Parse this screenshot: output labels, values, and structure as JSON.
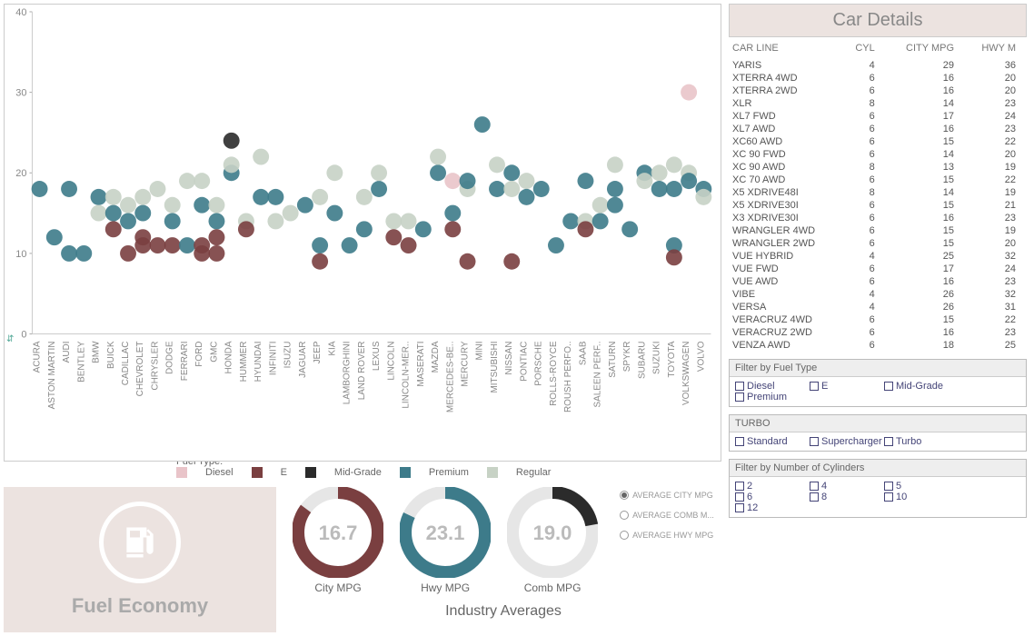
{
  "scatter": {
    "type": "scatter",
    "ylim": [
      0,
      40
    ],
    "yticks": [
      0,
      10,
      20,
      30,
      40
    ],
    "background_color": "#ffffff",
    "border_color": "#cccccc",
    "point_radius": 9,
    "fuel_colors": {
      "Diesel": "#e9c4c9",
      "E": "#7a3f40",
      "Mid-Grade": "#2b2b2b",
      "Premium": "#3d7b8a",
      "Regular": "#c7d2c5"
    },
    "legend_title": "Fuel Type:",
    "fuel_types": [
      "Diesel",
      "E",
      "Mid-Grade",
      "Premium",
      "Regular"
    ],
    "makes": [
      "ACURA",
      "ASTON MARTIN",
      "AUDI",
      "BENTLEY",
      "BMW",
      "BUICK",
      "CADILLAC",
      "CHEVROLET",
      "CHRYSLER",
      "DODGE",
      "FERRARI",
      "FORD",
      "GMC",
      "HONDA",
      "HUMMER",
      "HYUNDAI",
      "INFINITI",
      "ISUZU",
      "JAGUAR",
      "JEEP",
      "KIA",
      "LAMBORGHINI",
      "LAND ROVER",
      "LEXUS",
      "LINCOLN",
      "LINCOLN-MER..",
      "MASERATI",
      "MAZDA",
      "MERCEDES-BE..",
      "MERCURY",
      "MINI",
      "MITSUBISHI",
      "NISSAN",
      "PONTIAC",
      "PORSCHE",
      "ROLLS-ROYCE",
      "ROUSH PERFO..",
      "SAAB",
      "SALEEN PERF..",
      "SATURN",
      "SPYKR",
      "SUBARU",
      "SUZUKI",
      "TOYOTA",
      "VOLKSWAGEN",
      "VOLVO"
    ],
    "points": [
      {
        "m": 0,
        "y": 18,
        "f": "Premium"
      },
      {
        "m": 1,
        "y": 12,
        "f": "Premium"
      },
      {
        "m": 2,
        "y": 18,
        "f": "Premium"
      },
      {
        "m": 2,
        "y": 10,
        "f": "Premium"
      },
      {
        "m": 3,
        "y": 10,
        "f": "Premium"
      },
      {
        "m": 4,
        "y": 17,
        "f": "Premium"
      },
      {
        "m": 4,
        "y": 15,
        "f": "Regular"
      },
      {
        "m": 5,
        "y": 17,
        "f": "Regular"
      },
      {
        "m": 5,
        "y": 15,
        "f": "Premium"
      },
      {
        "m": 5,
        "y": 13,
        "f": "E"
      },
      {
        "m": 6,
        "y": 16,
        "f": "Regular"
      },
      {
        "m": 6,
        "y": 14,
        "f": "Premium"
      },
      {
        "m": 6,
        "y": 10,
        "f": "E"
      },
      {
        "m": 7,
        "y": 17,
        "f": "Regular"
      },
      {
        "m": 7,
        "y": 15,
        "f": "Premium"
      },
      {
        "m": 7,
        "y": 12,
        "f": "E"
      },
      {
        "m": 7,
        "y": 11,
        "f": "E"
      },
      {
        "m": 8,
        "y": 18,
        "f": "Regular"
      },
      {
        "m": 8,
        "y": 11,
        "f": "E"
      },
      {
        "m": 9,
        "y": 16,
        "f": "Regular"
      },
      {
        "m": 9,
        "y": 14,
        "f": "Premium"
      },
      {
        "m": 9,
        "y": 11,
        "f": "E"
      },
      {
        "m": 10,
        "y": 11,
        "f": "Premium"
      },
      {
        "m": 10,
        "y": 19,
        "f": "Regular"
      },
      {
        "m": 11,
        "y": 19,
        "f": "Regular"
      },
      {
        "m": 11,
        "y": 16,
        "f": "Premium"
      },
      {
        "m": 11,
        "y": 11,
        "f": "E"
      },
      {
        "m": 11,
        "y": 10,
        "f": "E"
      },
      {
        "m": 12,
        "y": 16,
        "f": "Regular"
      },
      {
        "m": 12,
        "y": 14,
        "f": "Premium"
      },
      {
        "m": 12,
        "y": 12,
        "f": "E"
      },
      {
        "m": 12,
        "y": 10,
        "f": "E"
      },
      {
        "m": 13,
        "y": 24,
        "f": "Mid-Grade"
      },
      {
        "m": 13,
        "y": 20,
        "f": "Premium"
      },
      {
        "m": 13,
        "y": 21,
        "f": "Regular"
      },
      {
        "m": 14,
        "y": 14,
        "f": "Regular"
      },
      {
        "m": 14,
        "y": 13,
        "f": "E"
      },
      {
        "m": 15,
        "y": 22,
        "f": "Regular"
      },
      {
        "m": 15,
        "y": 17,
        "f": "Premium"
      },
      {
        "m": 16,
        "y": 17,
        "f": "Premium"
      },
      {
        "m": 16,
        "y": 14,
        "f": "Regular"
      },
      {
        "m": 17,
        "y": 15,
        "f": "Regular"
      },
      {
        "m": 18,
        "y": 16,
        "f": "Premium"
      },
      {
        "m": 19,
        "y": 17,
        "f": "Regular"
      },
      {
        "m": 19,
        "y": 11,
        "f": "Premium"
      },
      {
        "m": 19,
        "y": 9,
        "f": "E"
      },
      {
        "m": 20,
        "y": 20,
        "f": "Regular"
      },
      {
        "m": 20,
        "y": 15,
        "f": "Premium"
      },
      {
        "m": 21,
        "y": 11,
        "f": "Premium"
      },
      {
        "m": 22,
        "y": 13,
        "f": "Premium"
      },
      {
        "m": 22,
        "y": 17,
        "f": "Regular"
      },
      {
        "m": 23,
        "y": 18,
        "f": "Premium"
      },
      {
        "m": 23,
        "y": 20,
        "f": "Regular"
      },
      {
        "m": 24,
        "y": 14,
        "f": "Regular"
      },
      {
        "m": 24,
        "y": 12,
        "f": "E"
      },
      {
        "m": 25,
        "y": 11,
        "f": "E"
      },
      {
        "m": 25,
        "y": 14,
        "f": "Regular"
      },
      {
        "m": 26,
        "y": 13,
        "f": "Premium"
      },
      {
        "m": 27,
        "y": 20,
        "f": "Premium"
      },
      {
        "m": 27,
        "y": 22,
        "f": "Regular"
      },
      {
        "m": 28,
        "y": 19,
        "f": "Diesel"
      },
      {
        "m": 28,
        "y": 15,
        "f": "Premium"
      },
      {
        "m": 28,
        "y": 13,
        "f": "E"
      },
      {
        "m": 29,
        "y": 18,
        "f": "Regular"
      },
      {
        "m": 29,
        "y": 19,
        "f": "Premium"
      },
      {
        "m": 29,
        "y": 9,
        "f": "E"
      },
      {
        "m": 30,
        "y": 26,
        "f": "Premium"
      },
      {
        "m": 31,
        "y": 21,
        "f": "Regular"
      },
      {
        "m": 31,
        "y": 18,
        "f": "Premium"
      },
      {
        "m": 32,
        "y": 20,
        "f": "Premium"
      },
      {
        "m": 32,
        "y": 18,
        "f": "Regular"
      },
      {
        "m": 32,
        "y": 9,
        "f": "E"
      },
      {
        "m": 33,
        "y": 19,
        "f": "Regular"
      },
      {
        "m": 33,
        "y": 17,
        "f": "Premium"
      },
      {
        "m": 34,
        "y": 18,
        "f": "Premium"
      },
      {
        "m": 35,
        "y": 11,
        "f": "Premium"
      },
      {
        "m": 36,
        "y": 14,
        "f": "Premium"
      },
      {
        "m": 37,
        "y": 19,
        "f": "Premium"
      },
      {
        "m": 37,
        "y": 14,
        "f": "Regular"
      },
      {
        "m": 37,
        "y": 13,
        "f": "E"
      },
      {
        "m": 38,
        "y": 14,
        "f": "Premium"
      },
      {
        "m": 38,
        "y": 16,
        "f": "Regular"
      },
      {
        "m": 39,
        "y": 21,
        "f": "Regular"
      },
      {
        "m": 39,
        "y": 18,
        "f": "Premium"
      },
      {
        "m": 39,
        "y": 16,
        "f": "Premium"
      },
      {
        "m": 40,
        "y": 13,
        "f": "Premium"
      },
      {
        "m": 41,
        "y": 20,
        "f": "Premium"
      },
      {
        "m": 41,
        "y": 19,
        "f": "Regular"
      },
      {
        "m": 42,
        "y": 20,
        "f": "Regular"
      },
      {
        "m": 42,
        "y": 18,
        "f": "Premium"
      },
      {
        "m": 43,
        "y": 21,
        "f": "Regular"
      },
      {
        "m": 43,
        "y": 18,
        "f": "Premium"
      },
      {
        "m": 43,
        "y": 11,
        "f": "Premium"
      },
      {
        "m": 43,
        "y": 9.5,
        "f": "E"
      },
      {
        "m": 44,
        "y": 30,
        "f": "Diesel"
      },
      {
        "m": 44,
        "y": 20,
        "f": "Regular"
      },
      {
        "m": 44,
        "y": 19,
        "f": "Premium"
      },
      {
        "m": 45,
        "y": 18,
        "f": "Premium"
      },
      {
        "m": 45,
        "y": 17,
        "f": "Regular"
      }
    ]
  },
  "details": {
    "title": "Car Details",
    "columns": [
      "CAR LINE",
      "CYL",
      "CITY MPG",
      "HWY M"
    ],
    "rows": [
      [
        "YARIS",
        4,
        29,
        36
      ],
      [
        "XTERRA 4WD",
        6,
        16,
        20
      ],
      [
        "XTERRA 2WD",
        6,
        16,
        20
      ],
      [
        "XLR",
        8,
        14,
        23
      ],
      [
        "XL7 FWD",
        6,
        17,
        24
      ],
      [
        "XL7 AWD",
        6,
        16,
        23
      ],
      [
        "XC60 AWD",
        6,
        15,
        22
      ],
      [
        "XC 90 FWD",
        6,
        14,
        20
      ],
      [
        "XC 90 AWD",
        8,
        13,
        19
      ],
      [
        "XC 70 AWD",
        6,
        15,
        22
      ],
      [
        "X5 XDRIVE48I",
        8,
        14,
        19
      ],
      [
        "X5 XDRIVE30I",
        6,
        15,
        21
      ],
      [
        "X3 XDRIVE30I",
        6,
        16,
        23
      ],
      [
        "WRANGLER 4WD",
        6,
        15,
        19
      ],
      [
        "WRANGLER 2WD",
        6,
        15,
        20
      ],
      [
        "VUE HYBRID",
        4,
        25,
        32
      ],
      [
        "VUE FWD",
        6,
        17,
        24
      ],
      [
        "VUE AWD",
        6,
        16,
        23
      ],
      [
        "VIBE",
        4,
        26,
        32
      ],
      [
        "VERSA",
        4,
        26,
        31
      ],
      [
        "VERACRUZ 4WD",
        6,
        15,
        22
      ],
      [
        "VERACRUZ 2WD",
        6,
        16,
        23
      ],
      [
        "VENZA AWD",
        6,
        18,
        25
      ]
    ]
  },
  "gauges": {
    "title": "Industry Averages",
    "items": [
      {
        "label": "City MPG",
        "value": "16.7",
        "color": "#7a3f40",
        "ratio": 0.85
      },
      {
        "label": "Hwy MPG",
        "value": "23.1",
        "color": "#3d7b8a",
        "ratio": 0.82
      },
      {
        "label": "Comb MPG",
        "value": "19.0",
        "color": "#2b2b2b",
        "ratio": 0.22
      }
    ],
    "radios": [
      {
        "label": "AVERAGE CITY MPG",
        "on": true
      },
      {
        "label": "AVERAGE COMB M...",
        "on": false
      },
      {
        "label": "AVERAGE HWY MPG",
        "on": false
      }
    ]
  },
  "fuel_logo_title": "Fuel Economy",
  "filters": {
    "fuel": {
      "title": "Filter by Fuel Type",
      "opts": [
        "Diesel",
        "E",
        "Mid-Grade",
        "Premium"
      ]
    },
    "turbo": {
      "title": "TURBO",
      "opts": [
        "Standard",
        "Supercharger",
        "Turbo"
      ]
    },
    "cyl": {
      "title": "Filter by Number of Cylinders",
      "opts": [
        "2",
        "4",
        "5",
        "6",
        "8",
        "10",
        "12"
      ]
    }
  }
}
